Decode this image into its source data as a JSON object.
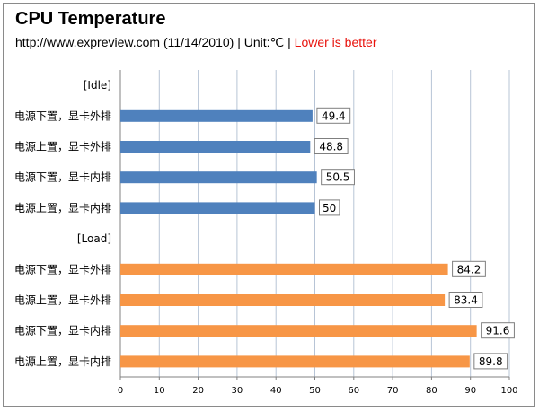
{
  "header": {
    "title": "CPU Temperature",
    "subtitle_main": "http://www.expreview.com  (11/14/2010) | Unit:℃ |",
    "subtitle_note": "Lower is better"
  },
  "chart_data": {
    "type": "bar",
    "orientation": "horizontal",
    "title": "CPU Temperature",
    "xlim": [
      0,
      100
    ],
    "x_ticks": [
      0,
      10,
      20,
      30,
      40,
      50,
      60,
      70,
      80,
      90,
      100
    ],
    "grid": true,
    "groups": [
      {
        "label": "[Idle]",
        "color": "#4f81bd",
        "categories": [
          "电源下置，显卡外排",
          "电源上置，显卡外排",
          "电源下置，显卡内排",
          "电源上置，显卡内排"
        ],
        "values": [
          49.4,
          48.8,
          50.5,
          50
        ]
      },
      {
        "label": "[Load]",
        "color": "#f79646",
        "categories": [
          "电源下置，显卡外排",
          "电源上置，显卡外排",
          "电源下置，显卡内排",
          "电源上置，显卡内排"
        ],
        "values": [
          84.2,
          83.4,
          91.6,
          89.8
        ]
      }
    ]
  }
}
